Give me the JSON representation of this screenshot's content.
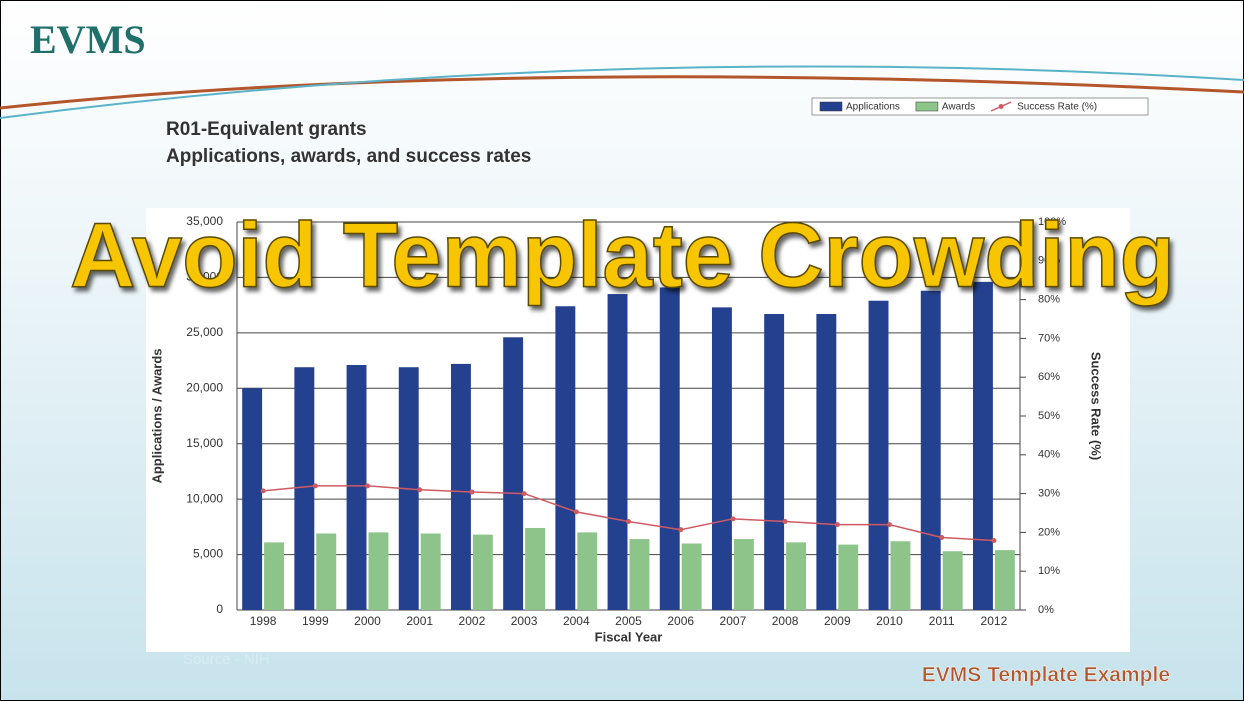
{
  "logo": "EVMS",
  "overlay_title": "Avoid Template Crowding",
  "footer": "EVMS Template Example",
  "source": "Source - NIH",
  "chart_data": {
    "type": "bar",
    "title": "R01-Equivalent grants",
    "subtitle": "Applications, awards, and success rates",
    "x_label": "Fiscal Year",
    "y_label": "Applications / Awards",
    "y2_label": "Success Rate (%)",
    "categories": [
      "1998",
      "1999",
      "2000",
      "2001",
      "2002",
      "2003",
      "2004",
      "2005",
      "2006",
      "2007",
      "2008",
      "2009",
      "2010",
      "2011",
      "2012"
    ],
    "series": [
      {
        "name": "Applications",
        "color": "#24418f",
        "type": "bar",
        "values": [
          20000,
          21900,
          22100,
          21900,
          22200,
          24600,
          27400,
          28500,
          29100,
          27300,
          26700,
          26700,
          27900,
          28800,
          29600
        ]
      },
      {
        "name": "Awards",
        "color": "#8cc48a",
        "type": "bar",
        "values": [
          6100,
          6900,
          7000,
          6900,
          6800,
          7400,
          7000,
          6400,
          6000,
          6400,
          6100,
          5900,
          6200,
          5300,
          5400
        ]
      },
      {
        "name": "Success Rate (%)",
        "color": "#d05a62",
        "type": "line",
        "axis": "y2",
        "values": [
          30.7,
          32,
          32,
          31,
          30.4,
          30,
          25.3,
          22.8,
          20.7,
          23.5,
          22.8,
          22,
          22,
          18.7,
          17.9
        ]
      }
    ],
    "ylim": [
      0,
      35000
    ],
    "yticks": [
      0,
      {
        "value": 5000,
        "label": "5,000"
      },
      {
        "value": 10000,
        "label": "10,000"
      },
      {
        "value": 15000,
        "label": "15,000"
      },
      {
        "value": 20000,
        "label": "20,000"
      },
      {
        "value": 25000,
        "label": "25,000"
      },
      {
        "value": 30000,
        "label": "30,000"
      },
      {
        "value": 35000,
        "label": "35,000"
      }
    ],
    "y2lim": [
      0,
      100
    ],
    "y2ticks": [
      {
        "value": 0,
        "label": "0%"
      },
      {
        "value": 10,
        "label": "10%"
      },
      {
        "value": 20,
        "label": "20%"
      },
      {
        "value": 30,
        "label": "30%"
      },
      {
        "value": 40,
        "label": "40%"
      },
      {
        "value": 50,
        "label": "50%"
      },
      {
        "value": 60,
        "label": "60%"
      },
      {
        "value": 70,
        "label": "70%"
      },
      {
        "value": 80,
        "label": "80%"
      },
      {
        "value": 90,
        "label": "90%"
      },
      {
        "value": 100,
        "label": "100%"
      }
    ],
    "grid": true,
    "legend": "top-right"
  }
}
